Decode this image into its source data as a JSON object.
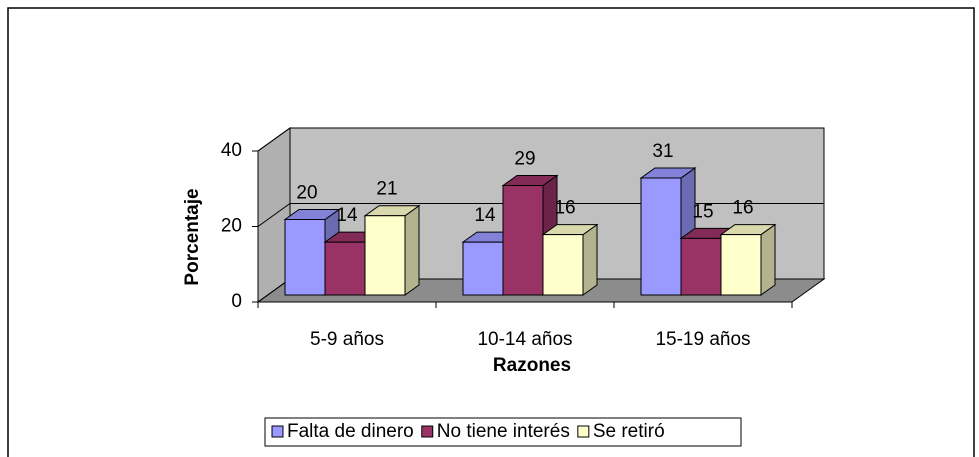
{
  "chart_data": {
    "type": "bar3d",
    "xlabel": "Razones",
    "ylabel": "Porcentaje",
    "categories": [
      "5-9 años",
      "10-14 años",
      "15-19 años"
    ],
    "series": [
      {
        "name": "Falta de dinero",
        "color": "#9999ff",
        "values": [
          20,
          14,
          31
        ]
      },
      {
        "name": "No tiene interés",
        "color": "#993366",
        "values": [
          14,
          29,
          15
        ]
      },
      {
        "name": "Se retiró",
        "color": "#ffffcc",
        "values": [
          21,
          16,
          16
        ]
      }
    ],
    "ylim": [
      0,
      40
    ],
    "yticks": [
      0,
      20,
      40
    ],
    "grid": true,
    "legend": "bottom"
  }
}
